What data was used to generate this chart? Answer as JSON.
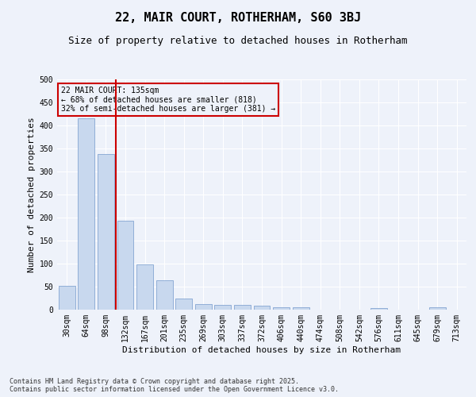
{
  "title": "22, MAIR COURT, ROTHERHAM, S60 3BJ",
  "subtitle": "Size of property relative to detached houses in Rotherham",
  "xlabel": "Distribution of detached houses by size in Rotherham",
  "ylabel": "Number of detached properties",
  "categories": [
    "30sqm",
    "64sqm",
    "98sqm",
    "132sqm",
    "167sqm",
    "201sqm",
    "235sqm",
    "269sqm",
    "303sqm",
    "337sqm",
    "372sqm",
    "406sqm",
    "440sqm",
    "474sqm",
    "508sqm",
    "542sqm",
    "576sqm",
    "611sqm",
    "645sqm",
    "679sqm",
    "713sqm"
  ],
  "values": [
    52,
    415,
    338,
    193,
    99,
    64,
    24,
    12,
    10,
    10,
    9,
    5,
    5,
    0,
    0,
    0,
    3,
    0,
    0,
    5,
    0
  ],
  "bar_color": "#c8d8ee",
  "bar_edge_color": "#7399cc",
  "vline_index": 2.5,
  "vline_color": "#cc0000",
  "annotation_text": "22 MAIR COURT: 135sqm\n← 68% of detached houses are smaller (818)\n32% of semi-detached houses are larger (381) →",
  "annotation_box_color": "#cc0000",
  "ylim": [
    0,
    500
  ],
  "yticks": [
    0,
    50,
    100,
    150,
    200,
    250,
    300,
    350,
    400,
    450,
    500
  ],
  "footer_text": "Contains HM Land Registry data © Crown copyright and database right 2025.\nContains public sector information licensed under the Open Government Licence v3.0.",
  "bg_color": "#eef2fa",
  "grid_color": "#ffffff",
  "title_fontsize": 11,
  "subtitle_fontsize": 9,
  "tick_fontsize": 7,
  "label_fontsize": 8,
  "footer_fontsize": 6
}
